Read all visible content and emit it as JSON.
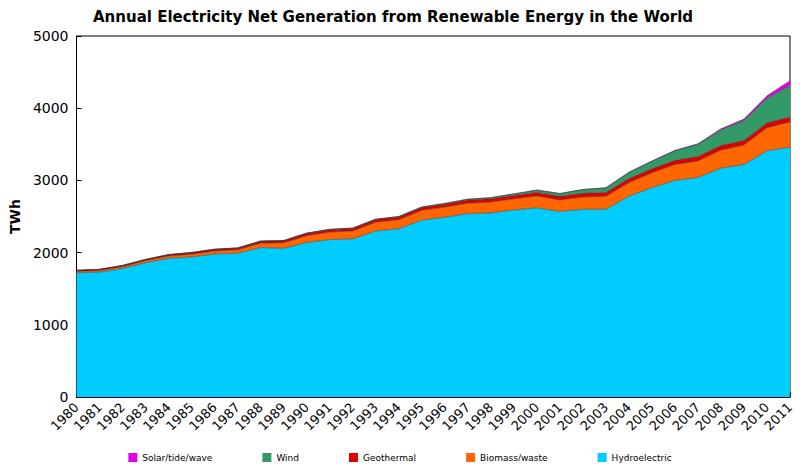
{
  "chart_data": {
    "type": "area",
    "title": "Annual Electricity Net Generation from Renewable Energy in the World",
    "y_label": "TWh",
    "categories": [
      "1980",
      "1981",
      "1982",
      "1983",
      "1984",
      "1985",
      "1986",
      "1987",
      "1988",
      "1989",
      "1990",
      "1991",
      "1992",
      "1993",
      "1994",
      "1995",
      "1996",
      "1997",
      "1998",
      "1999",
      "2000",
      "2001",
      "2002",
      "2003",
      "2004",
      "2005",
      "2006",
      "2007",
      "2008",
      "2009",
      "2010",
      "2011"
    ],
    "series": [
      {
        "name": "Solar/tide/wave",
        "color": "#e600e6",
        "values": [
          0,
          0,
          0,
          0,
          0,
          0,
          0,
          0,
          0,
          0,
          0,
          0,
          0,
          0,
          0,
          0,
          0,
          0,
          0,
          0,
          1,
          1,
          2,
          2,
          3,
          4,
          6,
          8,
          13,
          21,
          33,
          65
        ]
      },
      {
        "name": "Wind",
        "color": "#339966",
        "values": [
          0,
          0,
          0,
          0,
          0,
          1,
          1,
          2,
          3,
          3,
          4,
          4,
          5,
          6,
          7,
          8,
          10,
          12,
          16,
          21,
          31,
          38,
          52,
          63,
          85,
          104,
          132,
          170,
          219,
          274,
          342,
          437
        ]
      },
      {
        "name": "Geothermal",
        "color": "#e00000",
        "values": [
          15,
          16,
          17,
          18,
          20,
          22,
          24,
          25,
          27,
          29,
          31,
          33,
          35,
          37,
          38,
          39,
          41,
          43,
          45,
          47,
          49,
          50,
          51,
          53,
          55,
          56,
          58,
          60,
          62,
          64,
          66,
          68
        ]
      },
      {
        "name": "Biomass/waste",
        "color": "#ff6600",
        "values": [
          20,
          22,
          25,
          28,
          32,
          38,
          42,
          48,
          60,
          75,
          95,
          105,
          110,
          120,
          125,
          135,
          140,
          145,
          150,
          155,
          165,
          160,
          170,
          180,
          190,
          205,
          220,
          230,
          250,
          270,
          320,
          350
        ]
      },
      {
        "name": "Hydroelectric",
        "color": "#00ccff",
        "values": [
          1720,
          1730,
          1780,
          1860,
          1920,
          1940,
          1980,
          1990,
          2070,
          2060,
          2140,
          2180,
          2190,
          2300,
          2330,
          2450,
          2490,
          2540,
          2550,
          2590,
          2620,
          2570,
          2600,
          2600,
          2780,
          2900,
          3000,
          3040,
          3170,
          3220,
          3410,
          3460
        ]
      }
    ],
    "ylim": [
      0,
      5000
    ],
    "yticks": [
      0,
      1000,
      2000,
      3000,
      4000,
      5000
    ],
    "stacked": true,
    "grid": false,
    "legend": "bottom"
  }
}
